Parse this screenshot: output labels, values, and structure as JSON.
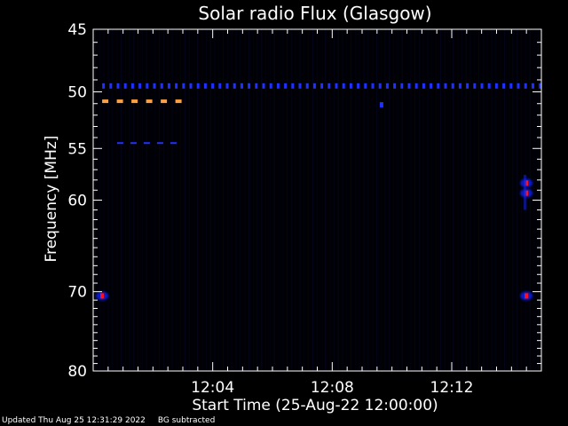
{
  "chart_data": {
    "type": "heatmap",
    "title": "Solar radio Flux (Glasgow)",
    "ylabel": "Frequency [MHz]",
    "xlabel": "Start Time (25-Aug-22 12:00:00)",
    "y_scale": "log",
    "ylim": [
      45,
      80
    ],
    "y_inverted": true,
    "y_ticks": [
      45,
      50,
      55,
      60,
      70,
      80
    ],
    "xlim": [
      "12:00:00",
      "12:15:00"
    ],
    "x_ticks": [
      "12:04",
      "12:08",
      "12:12"
    ],
    "x_tick_minutes": [
      4,
      8,
      12
    ],
    "x_range_minutes": [
      0,
      15
    ],
    "grid": false,
    "colors": {
      "background": "#000000",
      "low": "#0000ff",
      "mid": "#ff0000",
      "high": "#ffa040"
    },
    "features": [
      {
        "name": "50 MHz",
        "freq_mhz": 49.5,
        "t_start_min": 0.3,
        "t_end_min": 15.0,
        "intensity": 0.3
      },
      {
        "name": "51 MHz",
        "freq_mhz": 50.8,
        "t_start_min": 0.3,
        "t_end_min": 3.0,
        "intensity": 1.0
      },
      {
        "name": "54 MHz",
        "freq_mhz": 54.5,
        "t_start_min": 0.8,
        "t_end_min": 3.0,
        "intensity": 0.35
      },
      {
        "name": "51 MHz short",
        "freq_mhz": 51.1,
        "t_start_min": 9.6,
        "t_end_min": 9.7,
        "intensity": 0.4
      },
      {
        "name": "58 MHz",
        "freq_mhz": 58.3,
        "t_start_min": 14.4,
        "t_end_min": 14.6,
        "intensity": 0.8
      },
      {
        "name": "59 MHz",
        "freq_mhz": 59.3,
        "t_start_min": 14.4,
        "t_end_min": 14.6,
        "intensity": 0.6
      },
      {
        "name": "70 MHz a",
        "freq_mhz": 70.5,
        "t_start_min": 0.25,
        "t_end_min": 0.35,
        "intensity": 0.6
      },
      {
        "name": "70 MHz b",
        "freq_mhz": 70.5,
        "t_start_min": 14.45,
        "t_end_min": 14.55,
        "intensity": 0.6
      }
    ]
  },
  "footer": {
    "updated": "Updated Thu Aug 25 12:31:29 2022",
    "note": "BG subtracted"
  }
}
